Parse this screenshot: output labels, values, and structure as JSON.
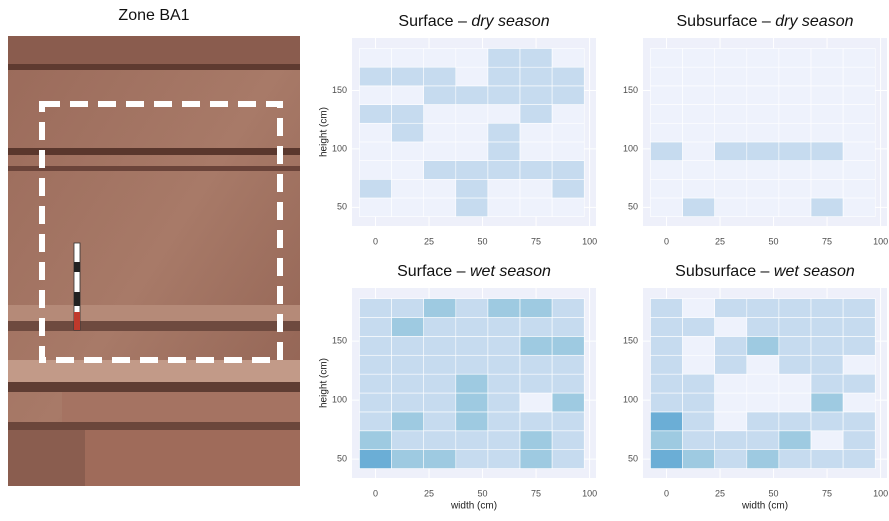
{
  "photo_label": "Zone BA1",
  "chart_data": [
    {
      "type": "heatmap",
      "title": {
        "text": "Surface – ",
        "emphasis": "dry season"
      },
      "x": [
        0,
        15,
        30,
        45,
        60,
        75,
        90
      ],
      "y": [
        50,
        66,
        82,
        98,
        114,
        130,
        146,
        162,
        178
      ],
      "values": [
        [
          0,
          0,
          0,
          1,
          0,
          0,
          0
        ],
        [
          1,
          0,
          0,
          1,
          0,
          0,
          1
        ],
        [
          0,
          0,
          1,
          1,
          1,
          1,
          1
        ],
        [
          0,
          0,
          0,
          0,
          1,
          0,
          0
        ],
        [
          0,
          1,
          0,
          0,
          1,
          0,
          0
        ],
        [
          1,
          1,
          0,
          0,
          0,
          1,
          0
        ],
        [
          0,
          0,
          1,
          1,
          1,
          1,
          1
        ],
        [
          1,
          1,
          1,
          0,
          1,
          1,
          1
        ],
        [
          0,
          0,
          0,
          0,
          1,
          1,
          0
        ]
      ],
      "colorscale": [
        "#eef2fc",
        "#c6dbef",
        "#9ecae1",
        "#6baed6"
      ],
      "xlim": [
        -11,
        103
      ],
      "ylim": [
        34,
        195
      ],
      "xticks": [
        0,
        25,
        50,
        75,
        100
      ],
      "yticks": [
        50,
        100,
        150
      ],
      "ylabel": "height (cm)"
    },
    {
      "type": "heatmap",
      "title": {
        "text": "Subsurface – ",
        "emphasis": "dry season"
      },
      "x": [
        0,
        15,
        30,
        45,
        60,
        75,
        90
      ],
      "y": [
        50,
        66,
        82,
        98,
        114,
        130,
        146,
        162,
        178
      ],
      "values": [
        [
          0,
          1,
          0,
          0,
          0,
          1,
          0
        ],
        [
          0,
          0,
          0,
          0,
          0,
          0,
          0
        ],
        [
          0,
          0,
          0,
          0,
          0,
          0,
          0
        ],
        [
          1,
          0,
          1,
          1,
          1,
          1,
          0
        ],
        [
          0,
          0,
          0,
          0,
          0,
          0,
          0
        ],
        [
          0,
          0,
          0,
          0,
          0,
          0,
          0
        ],
        [
          0,
          0,
          0,
          0,
          0,
          0,
          0
        ],
        [
          0,
          0,
          0,
          0,
          0,
          0,
          0
        ],
        [
          0,
          0,
          0,
          0,
          0,
          0,
          0
        ]
      ],
      "colorscale": [
        "#eef2fc",
        "#c6dbef",
        "#9ecae1",
        "#6baed6"
      ],
      "xlim": [
        -11,
        103
      ],
      "ylim": [
        34,
        195
      ],
      "xticks": [
        0,
        25,
        50,
        75,
        100
      ],
      "yticks": [
        50,
        100,
        150
      ]
    },
    {
      "type": "heatmap",
      "title": {
        "text": "Surface – ",
        "emphasis": "wet season"
      },
      "x": [
        0,
        15,
        30,
        45,
        60,
        75,
        90
      ],
      "y": [
        50,
        66,
        82,
        98,
        114,
        130,
        146,
        162,
        178
      ],
      "values": [
        [
          3,
          2,
          2,
          1,
          1,
          2,
          1
        ],
        [
          2,
          1,
          1,
          1,
          1,
          2,
          1
        ],
        [
          1,
          2,
          1,
          2,
          1,
          1,
          1
        ],
        [
          1,
          1,
          1,
          2,
          1,
          0,
          2
        ],
        [
          1,
          1,
          1,
          2,
          1,
          1,
          1
        ],
        [
          1,
          1,
          1,
          1,
          1,
          1,
          1
        ],
        [
          1,
          1,
          1,
          1,
          1,
          2,
          2
        ],
        [
          1,
          2,
          1,
          1,
          1,
          1,
          1
        ],
        [
          1,
          1,
          2,
          1,
          2,
          2,
          1
        ]
      ],
      "colorscale": [
        "#eef2fc",
        "#c6dbef",
        "#9ecae1",
        "#6baed6"
      ],
      "xlim": [
        -11,
        103
      ],
      "ylim": [
        34,
        195
      ],
      "xticks": [
        0,
        25,
        50,
        75,
        100
      ],
      "yticks": [
        50,
        100,
        150
      ],
      "xlabel": "width (cm)",
      "ylabel": "height (cm)"
    },
    {
      "type": "heatmap",
      "title": {
        "text": "Subsurface – ",
        "emphasis": "wet season"
      },
      "x": [
        0,
        15,
        30,
        45,
        60,
        75,
        90
      ],
      "y": [
        50,
        66,
        82,
        98,
        114,
        130,
        146,
        162,
        178
      ],
      "values": [
        [
          3,
          2,
          1,
          2,
          1,
          1,
          1
        ],
        [
          2,
          1,
          1,
          1,
          2,
          0,
          1
        ],
        [
          3,
          1,
          0,
          1,
          1,
          1,
          1
        ],
        [
          1,
          1,
          0,
          0,
          0,
          2,
          0
        ],
        [
          1,
          1,
          0,
          0,
          0,
          1,
          1
        ],
        [
          1,
          0,
          1,
          0,
          1,
          1,
          0
        ],
        [
          1,
          0,
          1,
          2,
          1,
          1,
          1
        ],
        [
          1,
          1,
          0,
          1,
          1,
          1,
          1
        ],
        [
          1,
          0,
          1,
          1,
          1,
          1,
          1
        ]
      ],
      "colorscale": [
        "#eef2fc",
        "#c6dbef",
        "#9ecae1",
        "#6baed6"
      ],
      "xlim": [
        -11,
        103
      ],
      "ylim": [
        34,
        195
      ],
      "xticks": [
        0,
        25,
        50,
        75,
        100
      ],
      "yticks": [
        50,
        100,
        150
      ],
      "xlabel": "width (cm)"
    }
  ]
}
